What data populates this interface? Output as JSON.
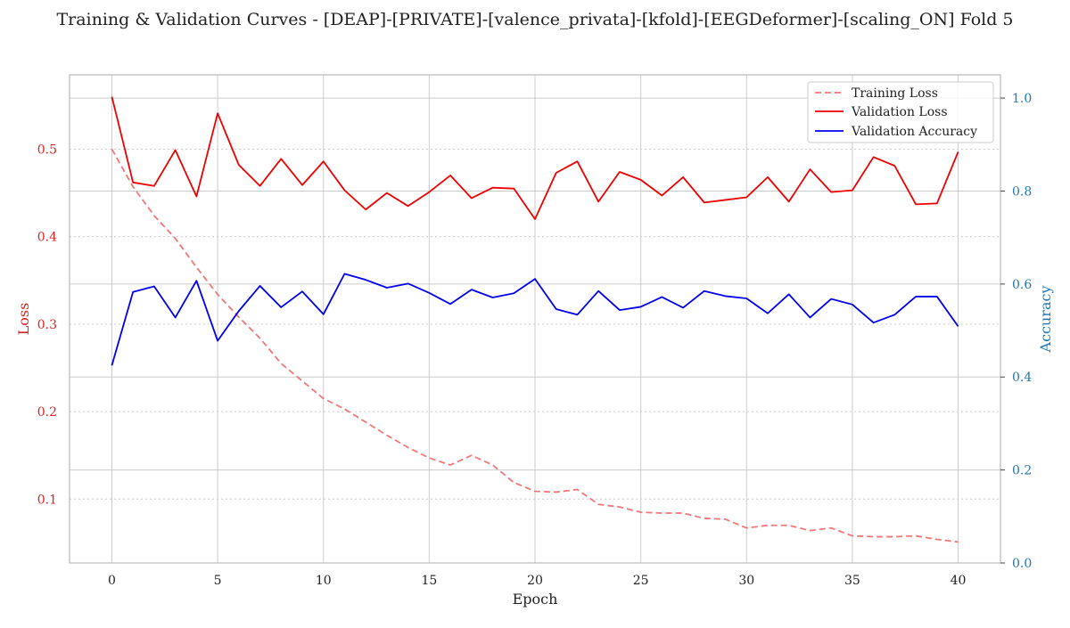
{
  "chart_data": {
    "type": "line",
    "title": "Training & Validation Curves - [DEAP]-[PRIVATE]-[valence_privata]-[kfold]-[EEGDeformer]-[scaling_ON] Fold 5",
    "xlabel": "Epoch",
    "ylabel_left": "Loss",
    "ylabel_right": "Accuracy",
    "x": [
      0,
      1,
      2,
      3,
      4,
      5,
      6,
      7,
      8,
      9,
      10,
      11,
      12,
      13,
      14,
      15,
      16,
      17,
      18,
      19,
      20,
      21,
      22,
      23,
      24,
      25,
      26,
      27,
      28,
      29,
      30,
      31,
      32,
      33,
      34,
      35,
      36,
      37,
      38,
      39,
      40
    ],
    "x_ticks": [
      0,
      5,
      10,
      15,
      20,
      25,
      30,
      35,
      40
    ],
    "x_tick_labels": [
      "0",
      "5",
      "10",
      "15",
      "20",
      "25",
      "30",
      "35",
      "40"
    ],
    "xlim": [
      -2,
      42
    ],
    "ylim_left": [
      0.027,
      0.585
    ],
    "y_ticks_left": [
      0.1,
      0.2,
      0.3,
      0.4,
      0.5
    ],
    "y_tick_labels_left": [
      "0.1",
      "0.2",
      "0.3",
      "0.4",
      "0.5"
    ],
    "ylim_right": [
      0.0,
      1.05
    ],
    "y_ticks_right": [
      0.0,
      0.2,
      0.4,
      0.6,
      0.8,
      1.0
    ],
    "y_tick_labels_right": [
      "0.0",
      "0.2",
      "0.4",
      "0.6",
      "0.8",
      "1.0"
    ],
    "grid": true,
    "legend_position": "top-right",
    "colors": {
      "training_loss": "#f07878",
      "validation_loss": "#ee0000",
      "validation_accuracy": "#0000ee",
      "left_axis": "#d62728",
      "right_axis": "#1f77b4",
      "grid": "#cccccc",
      "spine": "#bbbbbb"
    },
    "series": [
      {
        "name": "Training Loss",
        "axis": "left",
        "style": "dashed",
        "color": "#f07878",
        "values": [
          0.5,
          0.457,
          0.424,
          0.398,
          0.365,
          0.334,
          0.308,
          0.284,
          0.255,
          0.235,
          0.215,
          0.203,
          0.188,
          0.173,
          0.159,
          0.147,
          0.139,
          0.15,
          0.139,
          0.119,
          0.109,
          0.108,
          0.111,
          0.094,
          0.091,
          0.085,
          0.084,
          0.084,
          0.078,
          0.077,
          0.067,
          0.07,
          0.07,
          0.064,
          0.067,
          0.058,
          0.057,
          0.057,
          0.058,
          0.054,
          0.051
        ]
      },
      {
        "name": "Validation Loss",
        "axis": "left",
        "style": "solid",
        "color": "#ee0000",
        "values": [
          0.56,
          0.462,
          0.458,
          0.499,
          0.446,
          0.541,
          0.482,
          0.458,
          0.489,
          0.459,
          0.486,
          0.453,
          0.431,
          0.45,
          0.435,
          0.451,
          0.47,
          0.444,
          0.456,
          0.455,
          0.42,
          0.473,
          0.486,
          0.44,
          0.474,
          0.465,
          0.447,
          0.468,
          0.439,
          0.442,
          0.445,
          0.468,
          0.44,
          0.477,
          0.451,
          0.453,
          0.491,
          0.481,
          0.437,
          0.438,
          0.497
        ]
      },
      {
        "name": "Validation Accuracy",
        "axis": "right",
        "style": "solid",
        "color": "#0000ee",
        "values": [
          0.425,
          0.583,
          0.595,
          0.528,
          0.607,
          0.478,
          0.542,
          0.596,
          0.55,
          0.584,
          0.535,
          0.622,
          0.609,
          0.592,
          0.601,
          0.581,
          0.557,
          0.588,
          0.571,
          0.58,
          0.611,
          0.546,
          0.534,
          0.585,
          0.544,
          0.551,
          0.572,
          0.549,
          0.585,
          0.574,
          0.569,
          0.537,
          0.578,
          0.528,
          0.568,
          0.556,
          0.517,
          0.534,
          0.573,
          0.573,
          0.509
        ]
      }
    ]
  }
}
